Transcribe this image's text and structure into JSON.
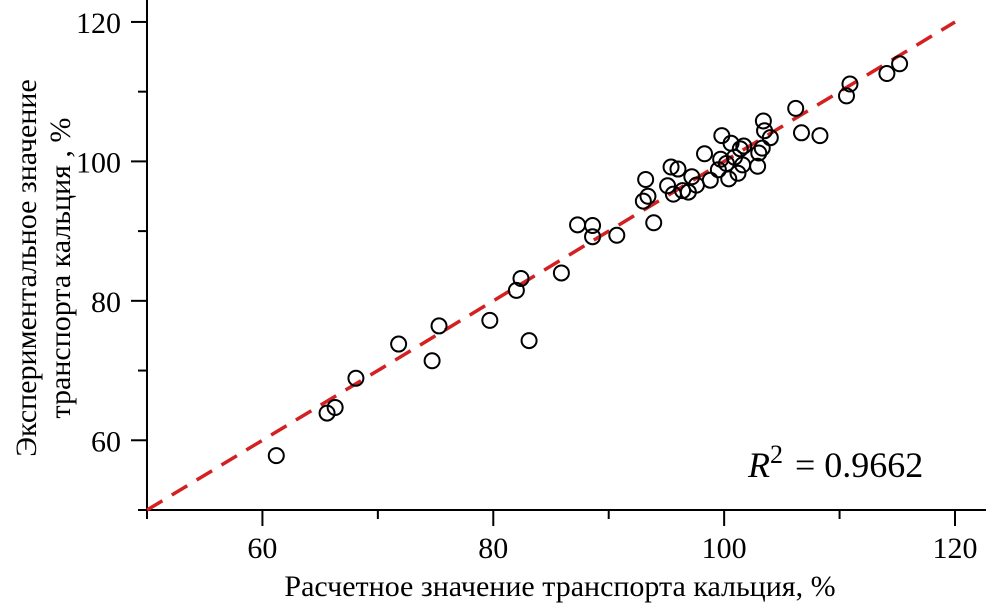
{
  "chart_data": {
    "type": "scatter",
    "xlabel": "Расчетное значение транспорта кальция, %",
    "ylabel_line1": "Экспериментальное значение",
    "ylabel_line2": "транспорта кальция , %",
    "xlim": [
      50,
      120
    ],
    "ylim": [
      50,
      122
    ],
    "x_ticks": [
      60,
      80,
      100,
      120
    ],
    "y_ticks": [
      60,
      80,
      100,
      120
    ],
    "x_tick_labels": [
      "60",
      "80",
      "100",
      "120"
    ],
    "y_tick_labels": [
      "60",
      "80",
      "100",
      "120"
    ],
    "annotation": {
      "r2_symbol": "R",
      "r2_exponent": "2",
      "r2_value": "= 0.9662"
    },
    "fit_line": {
      "x": [
        50,
        120
      ],
      "y": [
        50,
        120
      ],
      "color": "#d42020",
      "style": "dashed"
    },
    "points": [
      {
        "x": 61.2,
        "y": 57.8
      },
      {
        "x": 65.6,
        "y": 63.9
      },
      {
        "x": 66.3,
        "y": 64.7
      },
      {
        "x": 68.1,
        "y": 68.9
      },
      {
        "x": 71.8,
        "y": 73.8
      },
      {
        "x": 74.7,
        "y": 71.4
      },
      {
        "x": 75.3,
        "y": 76.4
      },
      {
        "x": 79.7,
        "y": 77.2
      },
      {
        "x": 82.0,
        "y": 81.5
      },
      {
        "x": 82.4,
        "y": 83.2
      },
      {
        "x": 83.1,
        "y": 74.3
      },
      {
        "x": 85.9,
        "y": 84.0
      },
      {
        "x": 87.3,
        "y": 90.9
      },
      {
        "x": 88.6,
        "y": 90.8
      },
      {
        "x": 88.6,
        "y": 89.2
      },
      {
        "x": 90.7,
        "y": 89.4
      },
      {
        "x": 93.0,
        "y": 94.3
      },
      {
        "x": 93.2,
        "y": 97.4
      },
      {
        "x": 93.4,
        "y": 95.0
      },
      {
        "x": 93.9,
        "y": 91.2
      },
      {
        "x": 95.1,
        "y": 96.5
      },
      {
        "x": 95.4,
        "y": 99.2
      },
      {
        "x": 95.6,
        "y": 95.3
      },
      {
        "x": 96.0,
        "y": 98.9
      },
      {
        "x": 96.4,
        "y": 95.8
      },
      {
        "x": 96.9,
        "y": 95.6
      },
      {
        "x": 97.2,
        "y": 97.8
      },
      {
        "x": 97.6,
        "y": 96.6
      },
      {
        "x": 98.3,
        "y": 101.1
      },
      {
        "x": 98.8,
        "y": 97.3
      },
      {
        "x": 99.5,
        "y": 98.8
      },
      {
        "x": 99.7,
        "y": 100.3
      },
      {
        "x": 99.8,
        "y": 103.7
      },
      {
        "x": 100.2,
        "y": 99.7
      },
      {
        "x": 100.4,
        "y": 97.5
      },
      {
        "x": 100.6,
        "y": 102.6
      },
      {
        "x": 100.9,
        "y": 100.6
      },
      {
        "x": 101.2,
        "y": 98.3
      },
      {
        "x": 101.4,
        "y": 101.8
      },
      {
        "x": 101.6,
        "y": 99.5
      },
      {
        "x": 101.7,
        "y": 102.2
      },
      {
        "x": 102.9,
        "y": 99.3
      },
      {
        "x": 103.0,
        "y": 101.2
      },
      {
        "x": 103.3,
        "y": 101.9
      },
      {
        "x": 103.4,
        "y": 105.8
      },
      {
        "x": 103.5,
        "y": 104.4
      },
      {
        "x": 104.0,
        "y": 103.4
      },
      {
        "x": 106.2,
        "y": 107.6
      },
      {
        "x": 106.7,
        "y": 104.1
      },
      {
        "x": 108.3,
        "y": 103.7
      },
      {
        "x": 110.6,
        "y": 109.4
      },
      {
        "x": 110.9,
        "y": 111.1
      },
      {
        "x": 114.1,
        "y": 112.6
      },
      {
        "x": 115.2,
        "y": 114.0
      }
    ]
  }
}
